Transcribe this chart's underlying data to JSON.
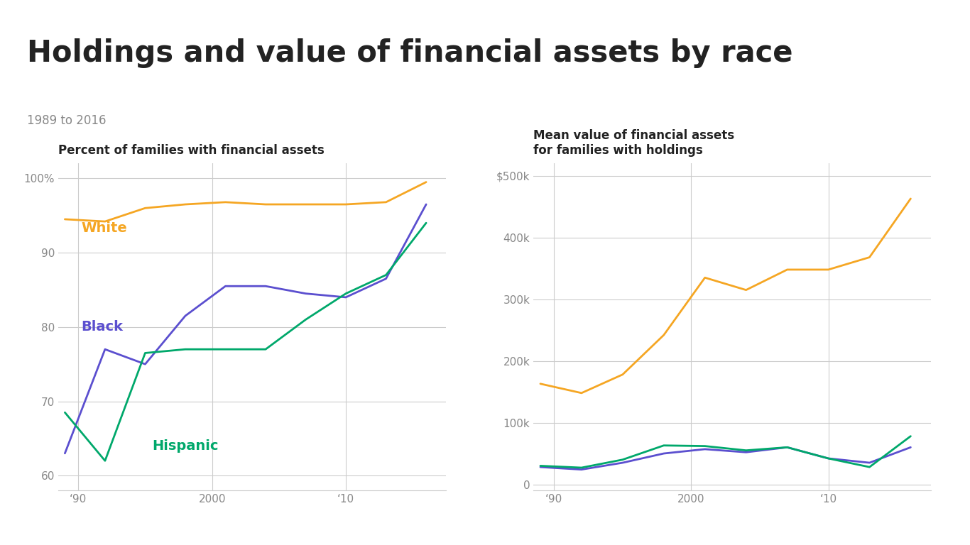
{
  "title": "Holdings and value of financial assets by race",
  "subtitle": "1989 to 2016",
  "left_chart_title": "Percent of families with financial assets",
  "right_chart_title": "Mean value of financial assets\nfor families with holdings",
  "years": [
    1989,
    1992,
    1995,
    1998,
    2001,
    2004,
    2007,
    2010,
    2013,
    2016
  ],
  "white_pct": [
    94.5,
    94.2,
    96.0,
    96.5,
    96.8,
    96.5,
    96.5,
    96.5,
    96.8,
    99.5
  ],
  "black_pct": [
    63.0,
    77.0,
    75.0,
    81.5,
    85.5,
    85.5,
    84.5,
    84.0,
    86.5,
    96.5
  ],
  "hispanic_pct": [
    68.5,
    62.0,
    76.5,
    77.0,
    77.0,
    77.0,
    81.0,
    84.5,
    87.0,
    94.0
  ],
  "white_val": [
    163000,
    148000,
    178000,
    242000,
    335000,
    315000,
    348000,
    348000,
    368000,
    463000
  ],
  "black_val": [
    28000,
    24000,
    35000,
    50000,
    57000,
    52000,
    60000,
    42000,
    35000,
    60000
  ],
  "hispanic_val": [
    30000,
    27000,
    40000,
    63000,
    62000,
    55000,
    60000,
    42000,
    28000,
    78000
  ],
  "white_color": "#f5a623",
  "black_color": "#5b4fcf",
  "hispanic_color": "#00a86b",
  "background_color": "#ffffff",
  "grid_color": "#cccccc",
  "title_color": "#222222",
  "subtitle_color": "#888888",
  "axis_text_color": "#888888",
  "chart_title_color": "#222222",
  "title_fontsize": 30,
  "subtitle_fontsize": 12,
  "chart_title_fontsize": 12,
  "label_fontsize": 14
}
